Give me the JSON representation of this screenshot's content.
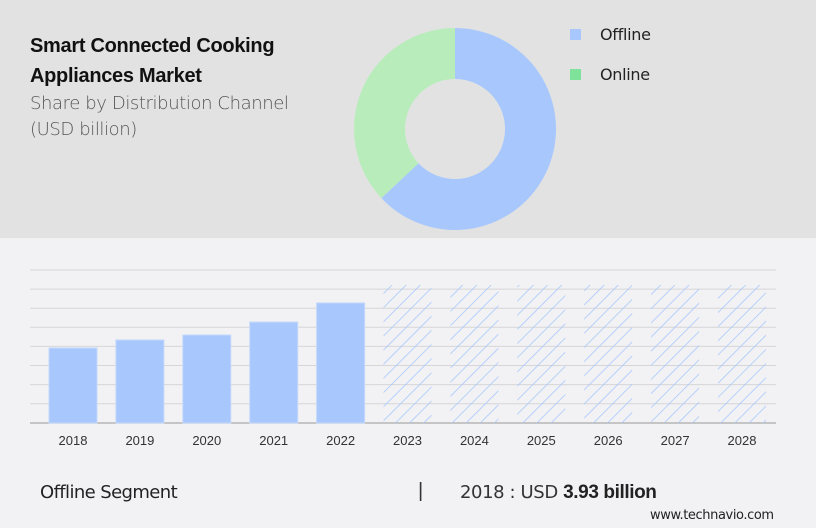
{
  "header": {
    "title_line1": "Smart Connected Cooking",
    "title_line2": "Appliances Market",
    "subtitle_line1": "Share by Distribution Channel",
    "subtitle_line2": "(USD billion)"
  },
  "legend": [
    {
      "label": "Offline",
      "color": "#a8c8fd"
    },
    {
      "label": "Online",
      "color": "#7ee29a"
    }
  ],
  "footer": {
    "segment": "Offline Segment",
    "separator": "|",
    "value_prefix": "2018 : USD",
    "value_bold": "3.93 billion",
    "site": "www.technavio.com"
  },
  "chart_data": [
    {
      "type": "pie",
      "title": "Share by Distribution Channel (USD billion)",
      "donut": true,
      "labels": [
        "Offline",
        "Online"
      ],
      "values": [
        63,
        37
      ],
      "colors": [
        "#a8c8fd",
        "#b8edbb"
      ],
      "legend_position": "right"
    },
    {
      "type": "bar",
      "title": "Offline Segment",
      "categories": [
        "2018",
        "2019",
        "2020",
        "2021",
        "2022",
        "2023",
        "2024",
        "2025",
        "2026",
        "2027",
        "2028"
      ],
      "values": [
        3.93,
        4.35,
        4.61,
        5.29,
        6.29,
        null,
        null,
        null,
        null,
        null,
        null
      ],
      "forecast_categories": [
        "2023",
        "2024",
        "2025",
        "2026",
        "2027",
        "2028"
      ],
      "forecast_style": "hatched placeholder bars (values not shown)",
      "xlabel": "",
      "ylabel": "",
      "ylim": [
        0,
        8.4
      ],
      "grid": true,
      "bar_color": "#a8c8fd",
      "annotation": "2018 : USD 3.93 billion"
    }
  ]
}
